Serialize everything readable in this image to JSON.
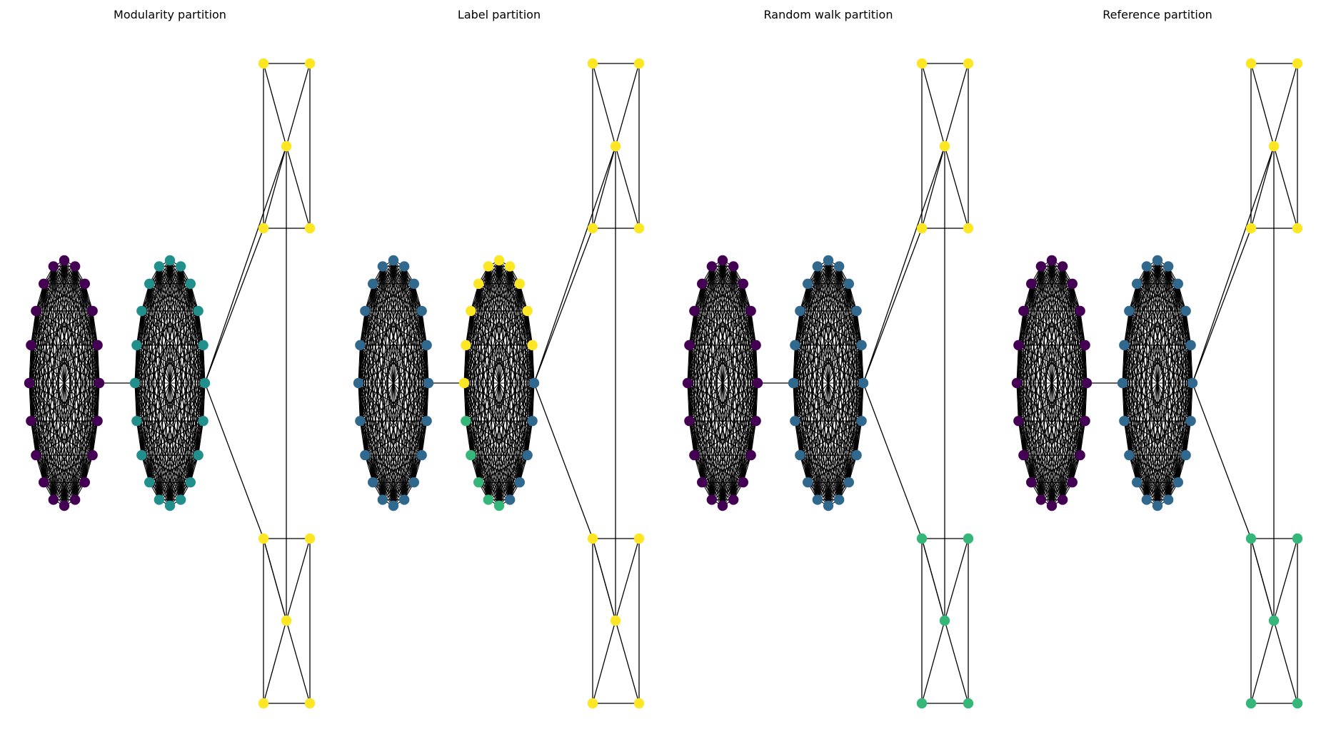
{
  "figure": {
    "panels": [
      {
        "title": "Modularity partition",
        "groups": {
          "cliqueA": "#440154",
          "cliqueB": "#21908d",
          "cliqueB_extra": [],
          "cliqueB_extra_color": "",
          "starTop": "#fde725",
          "starBottom": "#fde725"
        }
      },
      {
        "title": "Label partition",
        "groups": {
          "cliqueA": "#31688e",
          "cliqueB": "#fde725",
          "cliqueB_extra": [
            5,
            6,
            7,
            8,
            9
          ],
          "cliqueB_extra_color": "#35b779",
          "cliqueB_rest": "#31688e",
          "starTop": "#fde725",
          "starBottom": "#fde725"
        }
      },
      {
        "title": "Random walk partition",
        "groups": {
          "cliqueA": "#440154",
          "cliqueB": "#31688e",
          "cliqueB_extra": [],
          "cliqueB_extra_color": "",
          "starTop": "#fde725",
          "starBottom": "#35b779"
        }
      },
      {
        "title": "Reference partition",
        "groups": {
          "cliqueA": "#440154",
          "cliqueB": "#31688e",
          "cliqueB_extra": [],
          "cliqueB_extra_color": "",
          "starTop": "#fde725",
          "starBottom": "#35b779"
        }
      }
    ]
  }
}
